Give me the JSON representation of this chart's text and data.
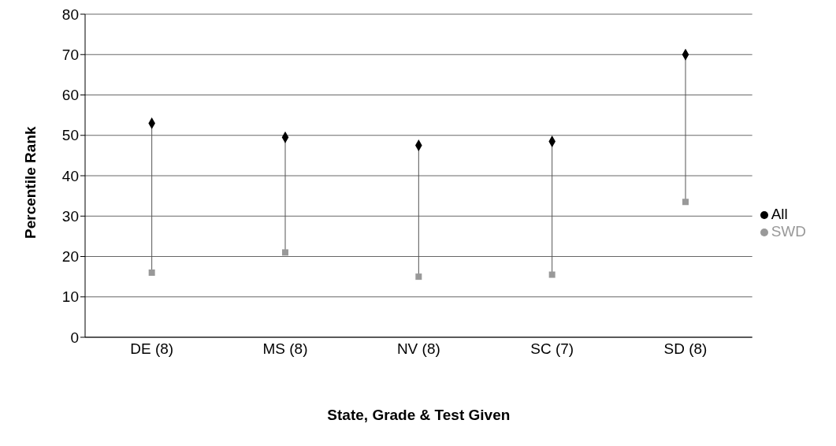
{
  "chart_data": {
    "type": "scatter",
    "xlabel": "State, Grade & Test Given",
    "ylabel": "Percentile Rank",
    "categories": [
      "DE (8)",
      "MS (8)",
      "NV (8)",
      "SC (7)",
      "SD (8)"
    ],
    "series": [
      {
        "name": "All",
        "color": "#000000",
        "marker": "diamond",
        "values": [
          53,
          49.5,
          47.5,
          48.5,
          70
        ]
      },
      {
        "name": "SWD",
        "color": "#999999",
        "marker": "square",
        "values": [
          16,
          21,
          15,
          15.5,
          33.5
        ]
      }
    ],
    "ylim": [
      0,
      80
    ],
    "yticks": [
      0,
      10,
      20,
      30,
      40,
      50,
      60,
      70,
      80
    ],
    "grid": "y",
    "legend": "right"
  }
}
